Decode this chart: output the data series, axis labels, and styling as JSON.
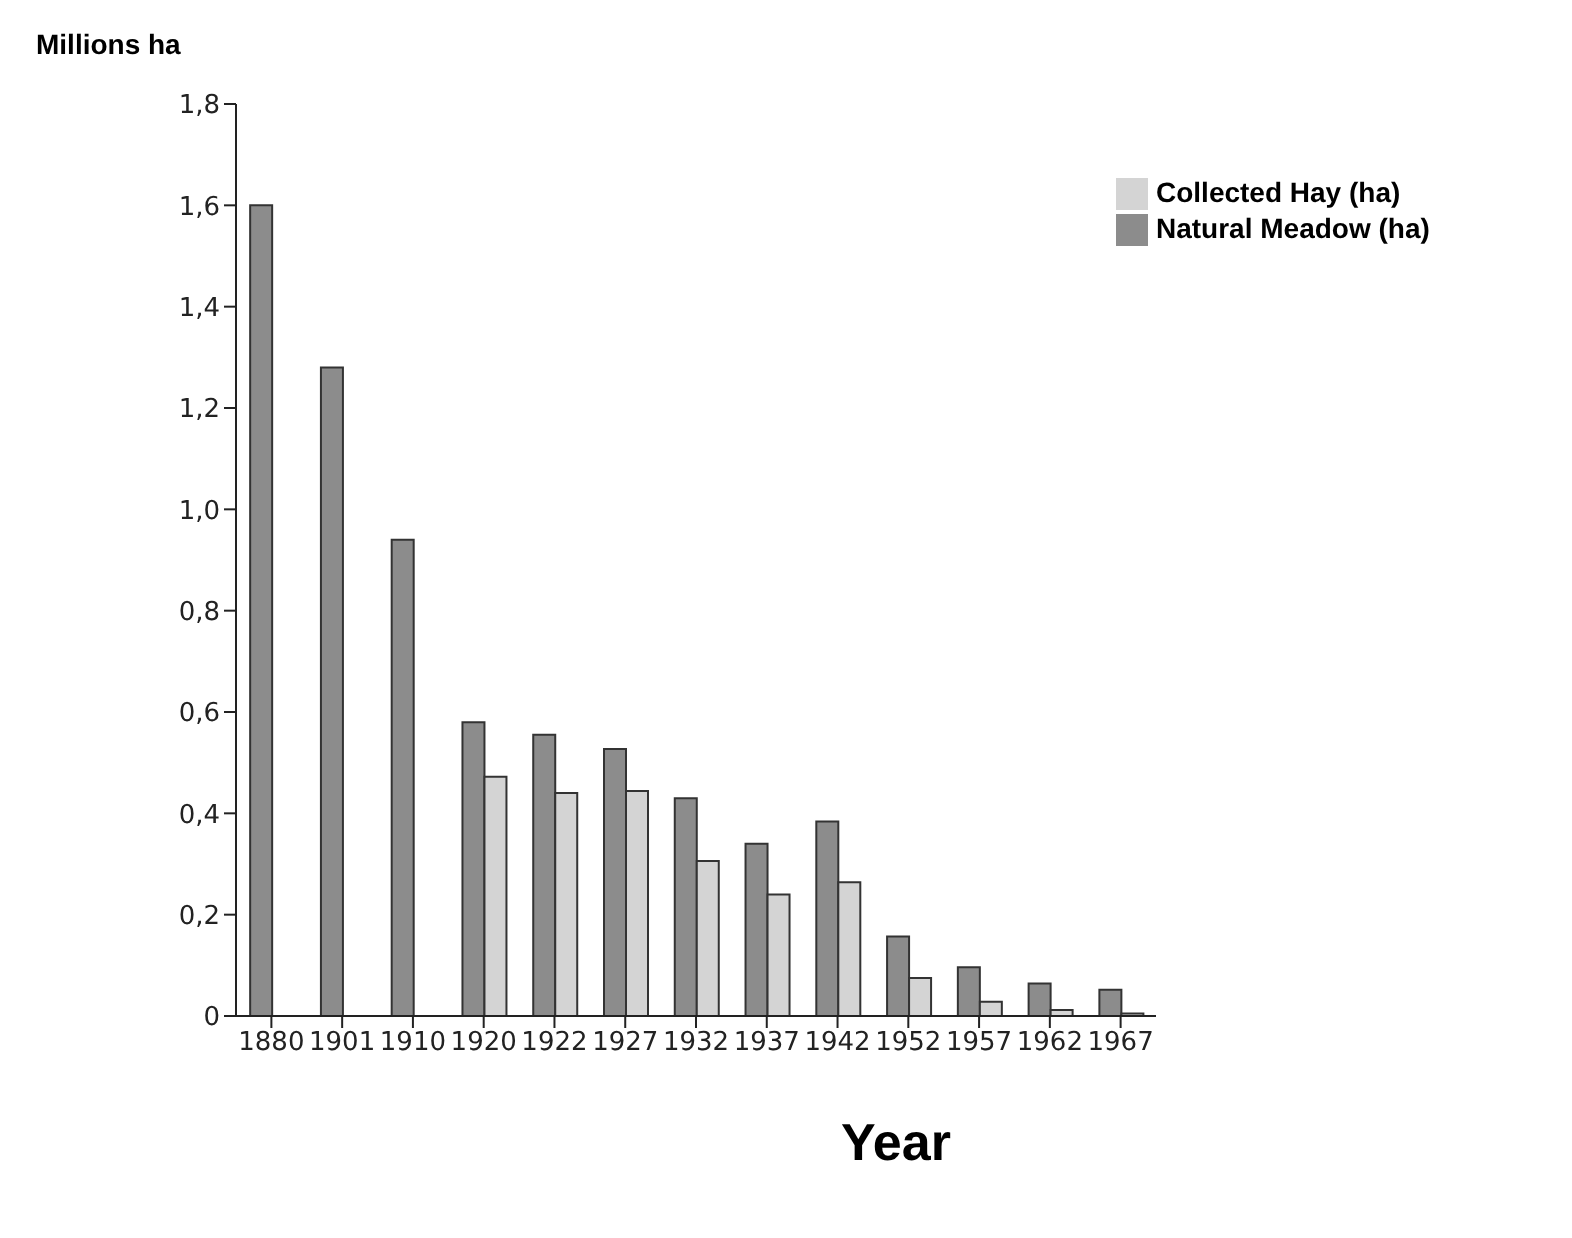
{
  "chart_data": {
    "type": "bar",
    "xlabel": "Year",
    "ylabel": "Millions ha",
    "categories": [
      "1880",
      "1901",
      "1910",
      "1920",
      "1922",
      "1927",
      "1932",
      "1937",
      "1942",
      "1952",
      "1957",
      "1962",
      "1967"
    ],
    "series": [
      {
        "name": "Natural Meadow (ha)",
        "color": "#8c8c8c",
        "values": [
          1.6,
          1.28,
          0.94,
          0.58,
          0.555,
          0.527,
          0.43,
          0.34,
          0.384,
          0.157,
          0.096,
          0.064,
          0.052
        ]
      },
      {
        "name": "Collected Hay (ha)",
        "color": "#d4d4d4",
        "values": [
          null,
          null,
          null,
          0.472,
          0.44,
          0.444,
          0.306,
          0.24,
          0.264,
          0.075,
          0.028,
          0.012,
          0.005
        ]
      }
    ],
    "ylim": [
      0,
      1.8
    ],
    "yticks": [
      {
        "value": 0,
        "label": "0"
      },
      {
        "value": 0.2,
        "label": "0,2"
      },
      {
        "value": 0.4,
        "label": "0,4"
      },
      {
        "value": 0.6,
        "label": "0,6"
      },
      {
        "value": 0.8,
        "label": "0,8"
      },
      {
        "value": 1,
        "label": "1,0"
      },
      {
        "value": 1.2,
        "label": "1,2"
      },
      {
        "value": 1.4,
        "label": "1,4"
      },
      {
        "value": 1.6,
        "label": "1,6"
      },
      {
        "value": 1.8,
        "label": "1,8"
      }
    ],
    "grid": false,
    "legend": "top right"
  }
}
